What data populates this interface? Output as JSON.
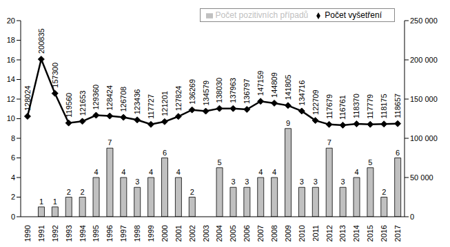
{
  "chart_data": {
    "type": "bar",
    "categories": [
      "1990",
      "1991",
      "1992",
      "1993",
      "1994",
      "1995",
      "1996",
      "1997",
      "1998",
      "1999",
      "2000",
      "2001",
      "2002",
      "2003",
      "2004",
      "2005",
      "2006",
      "2007",
      "2008",
      "2009",
      "2010",
      "2011",
      "2012",
      "2013",
      "2014",
      "2015",
      "2016",
      "2017"
    ],
    "series": [
      {
        "name": "Počet pozitivních případů",
        "type": "bar",
        "color": "#c0c0c0",
        "values": [
          0,
          1,
          1,
          2,
          2,
          4,
          7,
          4,
          3,
          4,
          6,
          4,
          2,
          0,
          5,
          3,
          3,
          4,
          4,
          9,
          3,
          3,
          7,
          3,
          4,
          5,
          2,
          6
        ]
      },
      {
        "name": "Počet vyšetření",
        "type": "line",
        "axis": "y2",
        "color": "#000000",
        "marker": "diamond",
        "values": [
          128024,
          200835,
          157300,
          119560,
          121653,
          129360,
          128424,
          126708,
          123436,
          117727,
          121201,
          127824,
          136269,
          134579,
          138030,
          137963,
          136797,
          147159,
          144809,
          141805,
          134716,
          122709,
          117679,
          116761,
          118370,
          117779,
          118175,
          118657
        ]
      }
    ],
    "ylim": [
      0,
      20
    ],
    "yticks": [
      0,
      2,
      4,
      6,
      8,
      10,
      12,
      14,
      16,
      18,
      20
    ],
    "y2lim": [
      0,
      250000
    ],
    "y2ticks": [
      0,
      {
        "value": 50000,
        "label": "50 000"
      },
      {
        "value": 100000,
        "label": "100 000"
      },
      {
        "value": 150000,
        "label": "150 000"
      },
      {
        "value": 200000,
        "label": "200 000"
      },
      {
        "value": 250000,
        "label": "250 000"
      }
    ],
    "data_labels": true,
    "legend": "upper right",
    "grid": false
  }
}
